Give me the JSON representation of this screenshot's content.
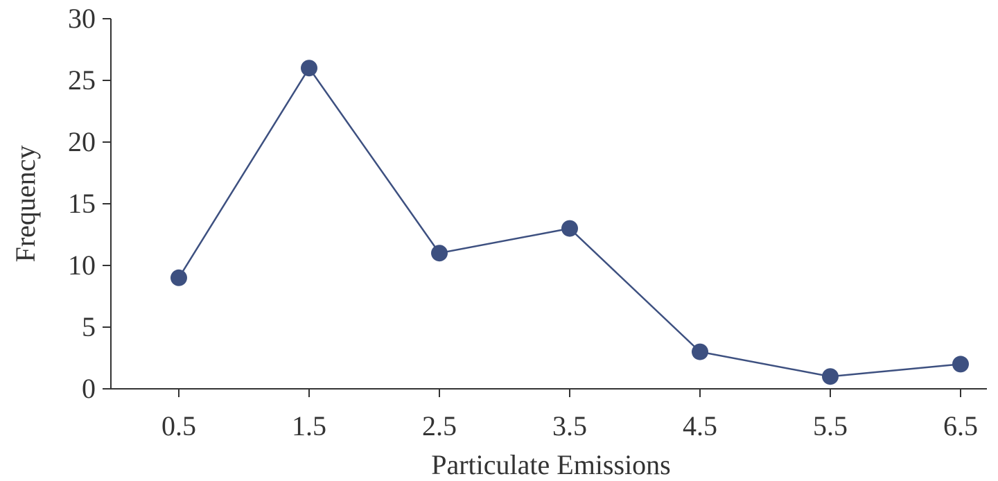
{
  "chart_data": {
    "type": "line",
    "title": "",
    "xlabel": "Particulate Emissions",
    "ylabel": "Frequency",
    "x": [
      0.5,
      1.5,
      2.5,
      3.5,
      4.5,
      5.5,
      6.5
    ],
    "x_tick_labels": [
      "0.5",
      "1.5",
      "2.5",
      "3.5",
      "4.5",
      "5.5",
      "6.5"
    ],
    "y_ticks": [
      0,
      5,
      10,
      15,
      20,
      25,
      30
    ],
    "y_tick_labels": [
      "0",
      "5",
      "10",
      "15",
      "20",
      "25",
      "30"
    ],
    "xlim": [
      0,
      6.7
    ],
    "ylim": [
      0,
      30
    ],
    "grid": false,
    "legend": "none",
    "series": [
      {
        "values": [
          9,
          26,
          11,
          13,
          3,
          1,
          2
        ],
        "color": "#3d5080",
        "marker": "circle"
      }
    ],
    "axis_color": "#333333"
  }
}
